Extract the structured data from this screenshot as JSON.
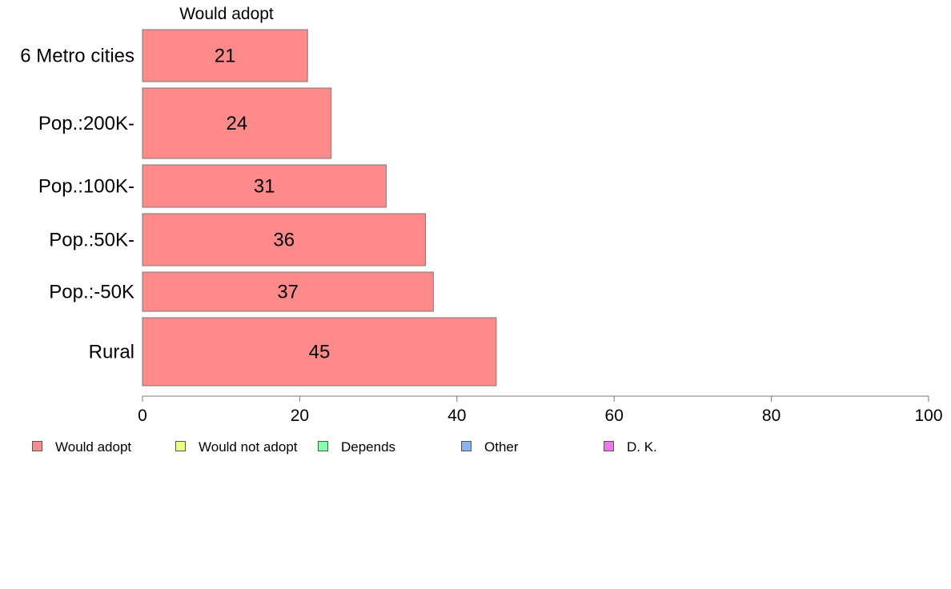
{
  "chart_data": {
    "type": "bar",
    "orientation": "horizontal",
    "title": "Would adopt",
    "categories": [
      "6 Metro cities",
      "Pop.:200K-",
      "Pop.:100K-",
      "Pop.:50K-",
      "Pop.:-50K",
      "Rural"
    ],
    "series": [
      {
        "name": "Would adopt",
        "values": [
          21,
          24,
          31,
          36,
          37,
          45
        ]
      }
    ],
    "xlim": [
      0,
      100
    ],
    "xticks": [
      0,
      20,
      40,
      60,
      80,
      100
    ],
    "xlabel": "",
    "ylabel": "",
    "grid": false,
    "legend_position": "bottom"
  },
  "legend": [
    {
      "label": "Would adopt",
      "color": "#ff8a8a"
    },
    {
      "label": "Would not adopt",
      "color": "#eeff88"
    },
    {
      "label": "Depends",
      "color": "#88ffaa"
    },
    {
      "label": "Other",
      "color": "#88b4f0"
    },
    {
      "label": "D. K.",
      "color": "#ee77ee"
    }
  ]
}
